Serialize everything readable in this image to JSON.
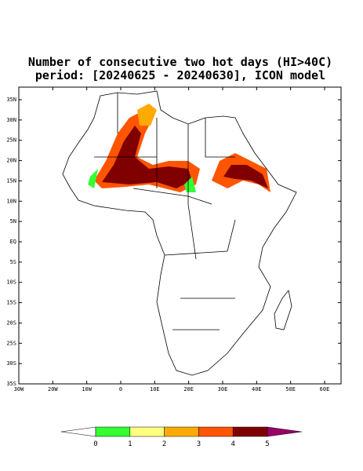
{
  "title": [
    "Number of consecutive two hot days (HI>40C)",
    "period: [20240625 - 20240630], ICON model"
  ],
  "map": {
    "lat_labels": [
      "35N",
      "30N",
      "25N",
      "20N",
      "15N",
      "10N",
      "5N",
      "EQ",
      "5S",
      "10S",
      "15S",
      "20S",
      "25S",
      "30S",
      "35S"
    ],
    "lon_labels": [
      "30W",
      "20W",
      "10W",
      "0",
      "10E",
      "20E",
      "30E",
      "40E",
      "50E",
      "60E"
    ]
  },
  "colorbar": {
    "bounds": [
      0,
      1,
      2,
      3,
      4,
      5
    ],
    "colors": [
      "#ffffff",
      "#33ff33",
      "#ffff80",
      "#ffaa00",
      "#ff5500",
      "#800000",
      "#990066"
    ]
  }
}
